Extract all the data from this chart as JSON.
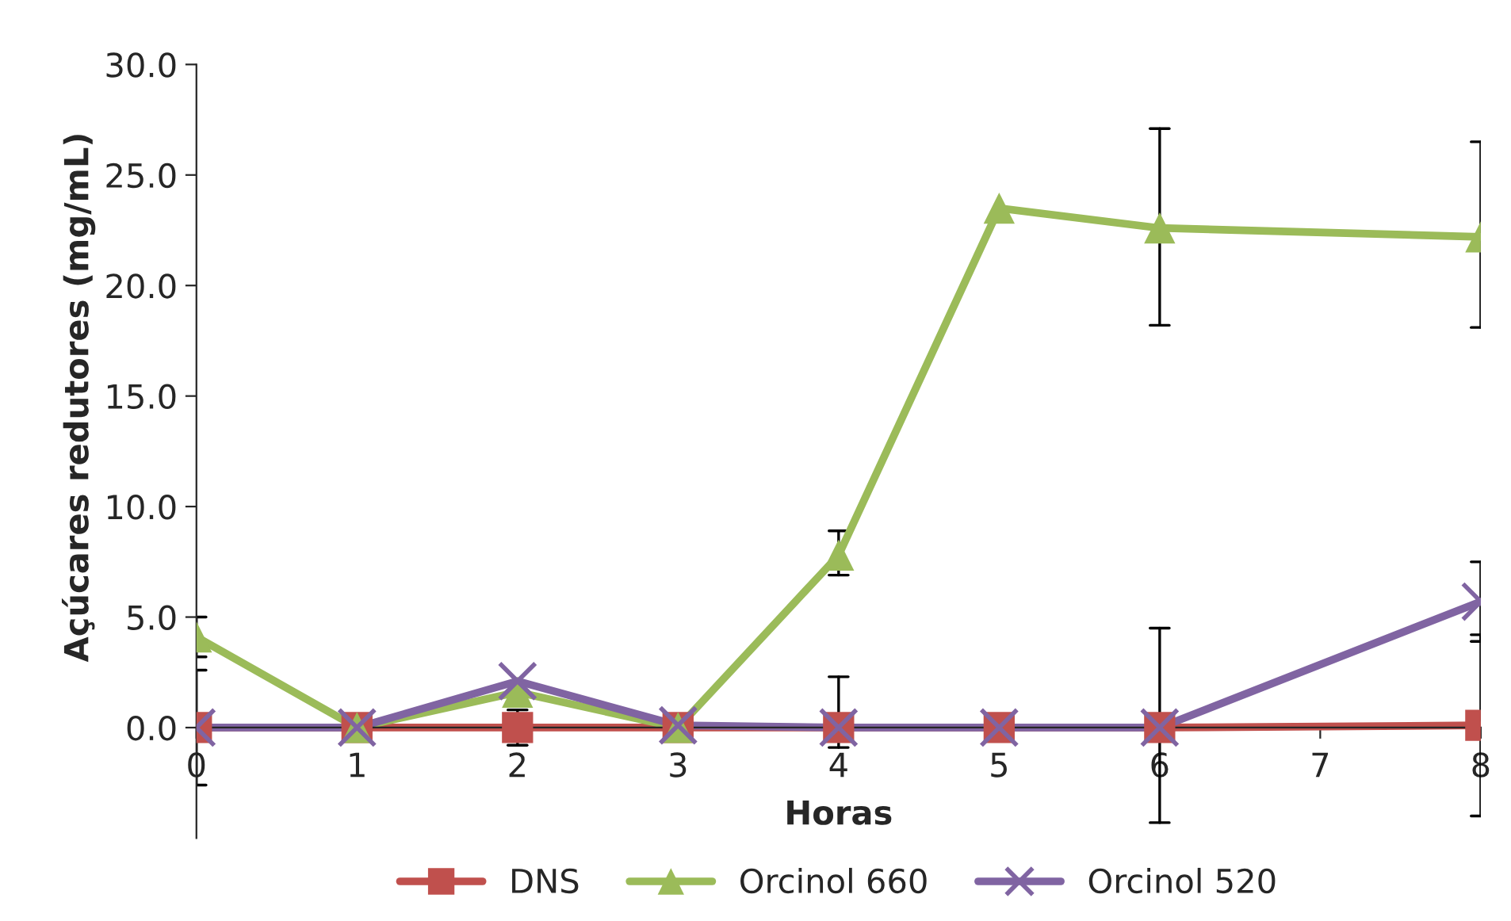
{
  "chart_data": {
    "type": "line",
    "xlabel": "Horas",
    "ylabel": "Açúcares redutores (mg/mL)",
    "x": [
      0,
      1,
      2,
      3,
      4,
      5,
      6,
      8
    ],
    "xlim": [
      0,
      8
    ],
    "xticks": [
      0,
      1,
      2,
      3,
      4,
      5,
      6,
      7,
      8
    ],
    "ylim": [
      -5,
      30
    ],
    "yticks": [
      {
        "value": 0,
        "label": "0.0"
      },
      {
        "value": 5,
        "label": "5.0"
      },
      {
        "value": 10,
        "label": "10.0"
      },
      {
        "value": 15,
        "label": "15.0"
      },
      {
        "value": 20,
        "label": "20.0"
      },
      {
        "value": 25,
        "label": "25.0"
      },
      {
        "value": 30,
        "label": "30.0"
      }
    ],
    "grid": false,
    "legend": "bottom",
    "series": [
      {
        "name": "DNS",
        "color": "#c0504d",
        "marker": "square",
        "values": [
          0.0,
          0.0,
          0.0,
          0.0,
          0.0,
          0.0,
          0.0,
          0.1
        ],
        "errors": [
          null,
          null,
          0.8,
          null,
          null,
          null,
          null,
          [
            -4.0,
            4.2
          ]
        ]
      },
      {
        "name": "Orcinol 660",
        "color": "#9bbb59",
        "marker": "triangle",
        "values": [
          4.1,
          0.0,
          1.6,
          0.0,
          7.8,
          23.5,
          22.6,
          22.2
        ],
        "errors": [
          0.9,
          null,
          null,
          null,
          [
            6.9,
            8.9
          ],
          null,
          [
            18.2,
            27.1
          ],
          [
            18.1,
            26.5
          ]
        ]
      },
      {
        "name": "Orcinol 520",
        "color": "#8064a2",
        "marker": "cross",
        "values": [
          0.0,
          0.0,
          2.1,
          0.1,
          0.0,
          0.0,
          0.0,
          5.7
        ],
        "errors": [
          2.6,
          null,
          null,
          null,
          [
            -0.9,
            2.3
          ],
          null,
          [
            -4.3,
            4.5
          ],
          [
            3.9,
            7.5
          ]
        ]
      }
    ]
  }
}
